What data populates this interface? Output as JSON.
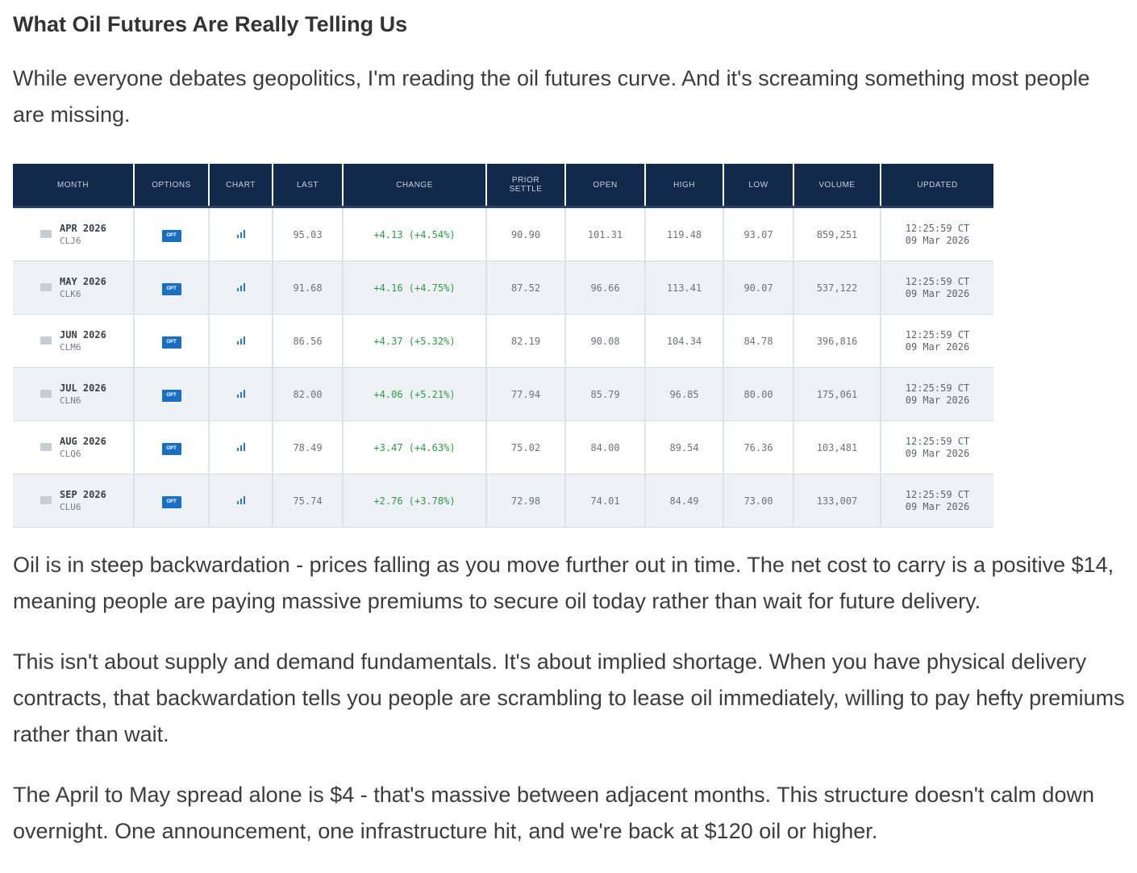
{
  "article": {
    "title": "What Oil Futures Are Really Telling Us",
    "intro": "While everyone debates geopolitics, I'm reading the oil futures curve. And it's screaming something most people are missing.",
    "p2": "Oil is in steep backwardation - prices falling as you move further out in time. The net cost to carry is a positive $14, meaning people are paying massive premiums to secure oil today rather than wait for future delivery.",
    "p3": "This isn't about supply and demand fundamentals. It's about implied shortage. When you have physical delivery contracts, that backwardation tells you people are scrambling to lease oil immediately, willing to pay hefty premiums rather than wait.",
    "p4": "The April to May spread alone is $4 - that's massive between adjacent months. This structure doesn't calm down overnight. One announcement, one infrastructure hit, and we're back at $120 oil or higher."
  },
  "table": {
    "headers": {
      "month": "MONTH",
      "options": "OPTIONS",
      "chart": "CHART",
      "last": "LAST",
      "change": "CHANGE",
      "prior_settle_1": "PRIOR",
      "prior_settle_2": "SETTLE",
      "open": "OPEN",
      "high": "HIGH",
      "low": "LOW",
      "volume": "VOLUME",
      "updated": "UPDATED"
    },
    "option_label": "OPT",
    "rows": [
      {
        "month": "APR 2026",
        "code": "CLJ6",
        "last": "95.03",
        "change": "+4.13 (+4.54%)",
        "prior": "90.90",
        "open": "101.31",
        "high": "119.48",
        "low": "93.07",
        "volume": "859,251",
        "time": "12:25:59 CT",
        "date": "09 Mar 2026"
      },
      {
        "month": "MAY 2026",
        "code": "CLK6",
        "last": "91.68",
        "change": "+4.16 (+4.75%)",
        "prior": "87.52",
        "open": "96.66",
        "high": "113.41",
        "low": "90.07",
        "volume": "537,122",
        "time": "12:25:59 CT",
        "date": "09 Mar 2026"
      },
      {
        "month": "JUN 2026",
        "code": "CLM6",
        "last": "86.56",
        "change": "+4.37 (+5.32%)",
        "prior": "82.19",
        "open": "90.08",
        "high": "104.34",
        "low": "84.78",
        "volume": "396,816",
        "time": "12:25:59 CT",
        "date": "09 Mar 2026"
      },
      {
        "month": "JUL 2026",
        "code": "CLN6",
        "last": "82.00",
        "change": "+4.06 (+5.21%)",
        "prior": "77.94",
        "open": "85.79",
        "high": "96.85",
        "low": "80.00",
        "volume": "175,061",
        "time": "12:25:59 CT",
        "date": "09 Mar 2026"
      },
      {
        "month": "AUG 2026",
        "code": "CLQ6",
        "last": "78.49",
        "change": "+3.47 (+4.63%)",
        "prior": "75.02",
        "open": "84.00",
        "high": "89.54",
        "low": "76.36",
        "volume": "103,481",
        "time": "12:25:59 CT",
        "date": "09 Mar 2026"
      },
      {
        "month": "SEP 2026",
        "code": "CLU6",
        "last": "75.74",
        "change": "+2.76 (+3.78%)",
        "prior": "72.98",
        "open": "74.01",
        "high": "84.49",
        "low": "73.00",
        "volume": "133,007",
        "time": "12:25:59 CT",
        "date": "09 Mar 2026"
      }
    ]
  },
  "colors": {
    "header_bg": "#13294b",
    "option_badge": "#1b6fc2",
    "change_positive": "#2f9a46",
    "row_alt": "#eef2f6"
  },
  "icons": {
    "month": "calendar-icon",
    "chart": "bar-chart-icon"
  }
}
